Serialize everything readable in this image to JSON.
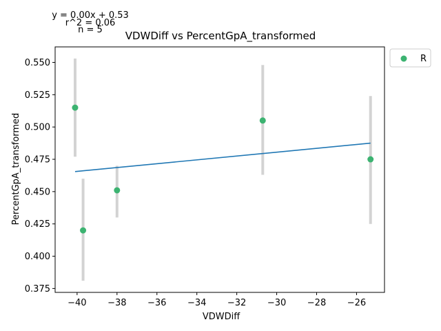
{
  "chart_data": {
    "type": "scatter",
    "title": "VDWDiff vs PercentGpA_transformed",
    "xlabel": "VDWDiff",
    "ylabel": "PercentGpA_transformed",
    "xlim": [
      -41.1,
      -24.6
    ],
    "ylim": [
      0.372,
      0.562
    ],
    "xticks": [
      -40,
      -38,
      -36,
      -34,
      -32,
      -30,
      -28,
      -26
    ],
    "xtick_labels": [
      "−40",
      "−38",
      "−36",
      "−34",
      "−32",
      "−30",
      "−28",
      "−26"
    ],
    "yticks": [
      0.375,
      0.4,
      0.425,
      0.45,
      0.475,
      0.5,
      0.525,
      0.55
    ],
    "ytick_labels": [
      "0.375",
      "0.400",
      "0.425",
      "0.450",
      "0.475",
      "0.500",
      "0.525",
      "0.550"
    ],
    "series": [
      {
        "name": "R",
        "color": "#3cb371",
        "points": [
          {
            "x": -40.1,
            "y": 0.515,
            "err_low": 0.477,
            "err_high": 0.553
          },
          {
            "x": -39.7,
            "y": 0.42,
            "err_low": 0.381,
            "err_high": 0.46
          },
          {
            "x": -38.0,
            "y": 0.451,
            "err_low": 0.43,
            "err_high": 0.47
          },
          {
            "x": -30.7,
            "y": 0.505,
            "err_low": 0.463,
            "err_high": 0.548
          },
          {
            "x": -25.3,
            "y": 0.475,
            "err_low": 0.425,
            "err_high": 0.524
          }
        ]
      }
    ],
    "fit_line": {
      "color": "#1f77b4",
      "x": [
        -40.1,
        -25.3
      ],
      "y": [
        0.4655,
        0.4875
      ]
    },
    "error_bar_color": "#d3d3d3",
    "stats": {
      "equation": "y = 0.00x + 0.53",
      "r_squared": "r^2 = 0.06",
      "n": "n = 5"
    },
    "legend": {
      "placement": "outside-top-right",
      "entries": [
        "R"
      ]
    },
    "grid": false
  }
}
